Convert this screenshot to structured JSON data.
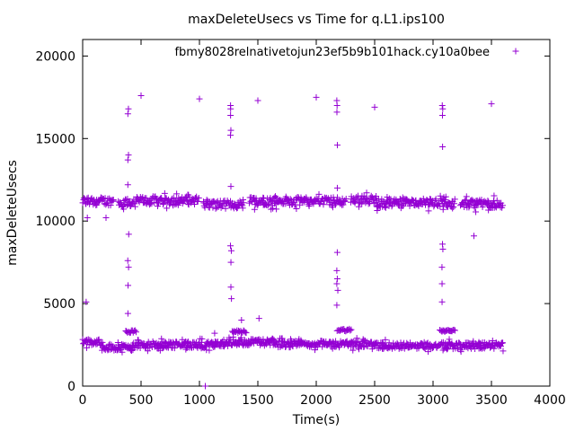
{
  "chart_data": {
    "type": "scatter",
    "title": "maxDeleteUsecs vs Time for q.L1.ips100",
    "xlabel": "Time(s)",
    "ylabel": "maxDeleteUsecs",
    "xlim": [
      0,
      4000
    ],
    "ylim": [
      0,
      21000
    ],
    "x_ticks": [
      0,
      500,
      1000,
      1500,
      2000,
      2500,
      3000,
      3500,
      4000
    ],
    "y_ticks": [
      0,
      5000,
      10000,
      15000,
      20000
    ],
    "x_tick_labels": [
      "0",
      "500",
      "1000",
      "1500",
      "2000",
      "2500",
      "3000",
      "3500",
      "4000"
    ],
    "y_tick_labels": [
      "0",
      "5000",
      "10000",
      "15000",
      "20000"
    ],
    "grid": false,
    "legend_position": "top-right",
    "marker": "+",
    "series": [
      {
        "name": "fbmy8028_rel_native_to_jun23_ef5b9b101_hack.cy10a0_bee",
        "name_display": "fbmy8028relnativetojun23ef5b9b101hack.cy10a0bee",
        "color": "#9400d3",
        "upper_band": {
          "x_range": [
            0,
            3600
          ],
          "typical_y": 11100,
          "spread": 250,
          "gaps": [
            [
              270,
              300
            ],
            [
              1000,
              1030
            ],
            [
              1380,
              1420
            ],
            [
              2260,
              2290
            ],
            [
              3190,
              3230
            ]
          ],
          "level_by_segment": [
            {
              "x": [
                0,
                270
              ],
              "y": 11200
            },
            {
              "x": [
                300,
                460
              ],
              "y": 11100
            },
            {
              "x": [
                460,
                1000
              ],
              "y": 11250
            },
            {
              "x": [
                1030,
                1380
              ],
              "y": 11000
            },
            {
              "x": [
                1420,
                2260
              ],
              "y": 11200
            },
            {
              "x": [
                2290,
                2520
              ],
              "y": 11300
            },
            {
              "x": [
                2520,
                3190
              ],
              "y": 11100
            },
            {
              "x": [
                3230,
                3600
              ],
              "y": 11050
            }
          ]
        },
        "lower_band": {
          "x_range": [
            0,
            3600
          ],
          "typical_y": 2500,
          "spread": 200,
          "level_by_segment": [
            {
              "x": [
                0,
                160
              ],
              "y": 2650
            },
            {
              "x": [
                160,
                420
              ],
              "y": 2350
            },
            {
              "x": [
                420,
                1250
              ],
              "y": 2500
            },
            {
              "x": [
                1250,
                1650
              ],
              "y": 2650
            },
            {
              "x": [
                1650,
                2500
              ],
              "y": 2550
            },
            {
              "x": [
                2500,
                3600
              ],
              "y": 2450
            }
          ],
          "secondary_runs": [
            {
              "x": [
                370,
                460
              ],
              "y": 3300
            },
            {
              "x": [
                1280,
                1400
              ],
              "y": 3300
            },
            {
              "x": [
                2180,
                2300
              ],
              "y": 3400
            },
            {
              "x": [
                3060,
                3190
              ],
              "y": 3350
            }
          ]
        },
        "spike_columns": [
          {
            "x": 390,
            "y": [
              16800,
              16500,
              14000,
              13700,
              12200,
              9200,
              7600,
              7200,
              6100,
              4400
            ]
          },
          {
            "x": 1270,
            "y": [
              17000,
              16800,
              16400,
              15500,
              15200,
              12100,
              8500,
              8200,
              7500,
              6000,
              5300
            ]
          },
          {
            "x": 2180,
            "y": [
              17300,
              17000,
              16600,
              14600,
              12000,
              8100,
              7000,
              6500,
              6200,
              5800,
              4900
            ]
          },
          {
            "x": 3080,
            "y": [
              17000,
              16800,
              16400,
              14500,
              8600,
              8300,
              7200,
              6200,
              5100
            ]
          }
        ],
        "outliers": [
          {
            "x": 500,
            "y": 17600
          },
          {
            "x": 1000,
            "y": 17400
          },
          {
            "x": 1500,
            "y": 17300
          },
          {
            "x": 2000,
            "y": 17500
          },
          {
            "x": 2500,
            "y": 16900
          },
          {
            "x": 3500,
            "y": 17100
          },
          {
            "x": 3350,
            "y": 9100
          },
          {
            "x": 30,
            "y": 5100
          },
          {
            "x": 40,
            "y": 10200
          },
          {
            "x": 200,
            "y": 10200
          },
          {
            "x": 1360,
            "y": 4000
          },
          {
            "x": 1510,
            "y": 4100
          },
          {
            "x": 1130,
            "y": 3200
          },
          {
            "x": 1050,
            "y": 0
          }
        ]
      }
    ]
  }
}
